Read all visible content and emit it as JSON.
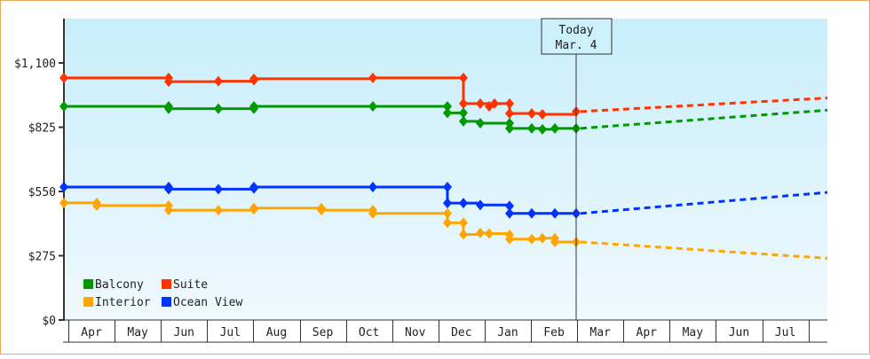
{
  "chart_data": {
    "type": "line",
    "title": "",
    "xlabel": "",
    "ylabel": "",
    "ylim": [
      0,
      1100
    ],
    "y_ticks": [
      {
        "value": 0,
        "label": "$0"
      },
      {
        "value": 275,
        "label": "$275"
      },
      {
        "value": 550,
        "label": "$550"
      },
      {
        "value": 825,
        "label": "$825"
      },
      {
        "value": 1100,
        "label": "$1,100"
      }
    ],
    "x_months": [
      "Apr",
      "May",
      "Jun",
      "Jul",
      "Aug",
      "Sep",
      "Oct",
      "Nov",
      "Dec",
      "Jan",
      "Feb",
      "Mar",
      "Apr",
      "May",
      "Jun",
      "Jul"
    ],
    "today_marker": {
      "line1": "Today",
      "line2": "Mar. 4"
    },
    "grid": false,
    "legend_position": "lower-left",
    "series": [
      {
        "name": "Suite",
        "color": "#ff3300",
        "step_points": [
          [
            71,
            1036
          ],
          [
            189,
            1036
          ],
          [
            189,
            1020
          ],
          [
            245,
            1022
          ],
          [
            285,
            1026
          ],
          [
            285,
            1032
          ],
          [
            419,
            1036
          ],
          [
            521,
            1036
          ],
          [
            521,
            926
          ],
          [
            540,
            926
          ],
          [
            550,
            914
          ],
          [
            556,
            926
          ],
          [
            573,
            926
          ],
          [
            573,
            884
          ],
          [
            598,
            884
          ],
          [
            610,
            880
          ],
          [
            648,
            892
          ]
        ],
        "forecast": [
          [
            648,
            892
          ],
          [
            931,
            950
          ]
        ]
      },
      {
        "name": "Balcony",
        "color": "#009900",
        "step_points": [
          [
            71,
            914
          ],
          [
            189,
            914
          ],
          [
            189,
            904
          ],
          [
            245,
            904
          ],
          [
            285,
            904
          ],
          [
            285,
            914
          ],
          [
            419,
            914
          ],
          [
            503,
            914
          ],
          [
            503,
            886
          ],
          [
            521,
            886
          ],
          [
            521,
            850
          ],
          [
            540,
            842
          ],
          [
            573,
            842
          ],
          [
            573,
            820
          ],
          [
            598,
            820
          ],
          [
            610,
            816
          ],
          [
            624,
            820
          ],
          [
            648,
            820
          ]
        ],
        "forecast": [
          [
            648,
            820
          ],
          [
            931,
            898
          ]
        ]
      },
      {
        "name": "Ocean View",
        "color": "#0033ff",
        "step_points": [
          [
            71,
            569
          ],
          [
            189,
            569
          ],
          [
            189,
            560
          ],
          [
            245,
            560
          ],
          [
            285,
            563
          ],
          [
            285,
            569
          ],
          [
            419,
            569
          ],
          [
            503,
            569
          ],
          [
            503,
            500
          ],
          [
            521,
            500
          ],
          [
            540,
            492
          ],
          [
            573,
            488
          ],
          [
            573,
            456
          ],
          [
            598,
            456
          ],
          [
            624,
            456
          ],
          [
            648,
            456
          ]
        ],
        "forecast": [
          [
            648,
            456
          ],
          [
            931,
            546
          ]
        ]
      },
      {
        "name": "Interior",
        "color": "#ffa500",
        "step_points": [
          [
            71,
            501
          ],
          [
            108,
            501
          ],
          [
            108,
            490
          ],
          [
            189,
            490
          ],
          [
            189,
            470
          ],
          [
            245,
            470
          ],
          [
            285,
            473
          ],
          [
            285,
            479
          ],
          [
            361,
            479
          ],
          [
            361,
            470
          ],
          [
            419,
            470
          ],
          [
            419,
            456
          ],
          [
            503,
            456
          ],
          [
            503,
            416
          ],
          [
            521,
            416
          ],
          [
            521,
            366
          ],
          [
            540,
            372
          ],
          [
            550,
            370
          ],
          [
            573,
            364
          ],
          [
            573,
            346
          ],
          [
            598,
            346
          ],
          [
            610,
            350
          ],
          [
            624,
            350
          ],
          [
            624,
            334
          ],
          [
            648,
            334
          ]
        ],
        "forecast": [
          [
            648,
            334
          ],
          [
            931,
            264
          ]
        ]
      }
    ]
  },
  "legend": {
    "items": [
      {
        "label": "Balcony",
        "color": "#009900"
      },
      {
        "label": "Suite",
        "color": "#ff3300"
      },
      {
        "label": "Interior",
        "color": "#ffa500"
      },
      {
        "label": "Ocean View",
        "color": "#0033ff"
      }
    ]
  }
}
